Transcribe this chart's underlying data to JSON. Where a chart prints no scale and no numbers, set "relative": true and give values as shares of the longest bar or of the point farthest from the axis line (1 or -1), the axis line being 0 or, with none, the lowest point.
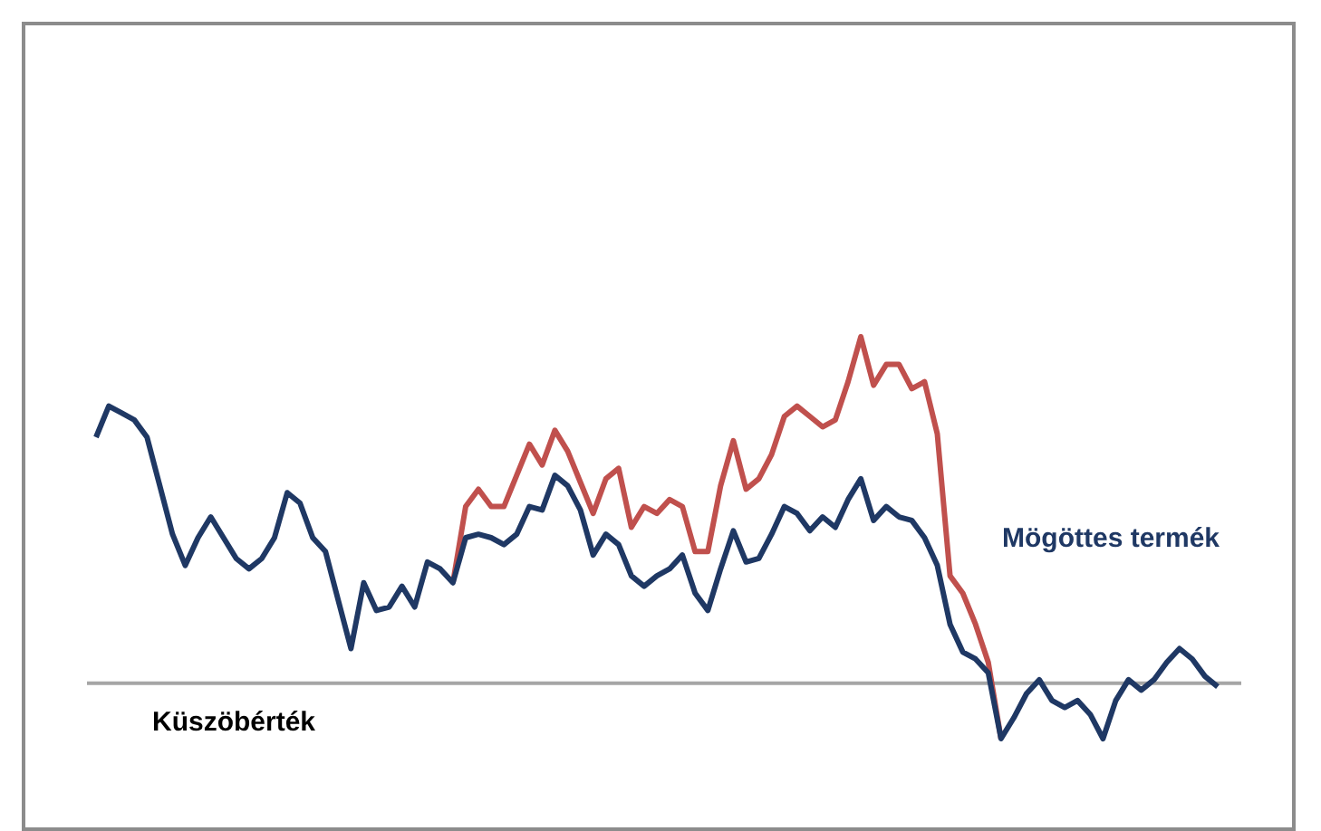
{
  "chart_data": {
    "type": "line",
    "relative": true,
    "categories": [
      null,
      null,
      null,
      null,
      null,
      null,
      null,
      null,
      null,
      null,
      null,
      null,
      null,
      null,
      null,
      null,
      null,
      null,
      null,
      null,
      null,
      null,
      null,
      null,
      null,
      null,
      null,
      null,
      null,
      null,
      null,
      null,
      null,
      null,
      null,
      null,
      null,
      null,
      null,
      null,
      null,
      null,
      null,
      null,
      null,
      null,
      null,
      null,
      null,
      null,
      null,
      null,
      null,
      null,
      null,
      null,
      null,
      null,
      null,
      null,
      null,
      null,
      null,
      null,
      null,
      null,
      null,
      null,
      null,
      null,
      null,
      null,
      null,
      null,
      null,
      null,
      null,
      null,
      null,
      null,
      null,
      null,
      null,
      null,
      null,
      null,
      null,
      null,
      null
    ],
    "series": [
      {
        "color": "#c0504d",
        "values": [
          null,
          null,
          null,
          null,
          null,
          null,
          null,
          null,
          null,
          null,
          null,
          null,
          null,
          null,
          null,
          null,
          null,
          null,
          null,
          null,
          null,
          null,
          null,
          null,
          null,
          null,
          null,
          null,
          0.29,
          0.51,
          0.56,
          0.51,
          0.51,
          0.6,
          0.69,
          0.63,
          0.73,
          0.67,
          0.58,
          0.49,
          0.59,
          0.62,
          0.45,
          0.51,
          0.49,
          0.53,
          0.51,
          0.38,
          0.38,
          0.57,
          0.7,
          0.56,
          0.59,
          0.66,
          0.77,
          0.8,
          0.77,
          0.74,
          0.76,
          0.87,
          1,
          0.86,
          0.92,
          0.92,
          0.85,
          0.87,
          0.72,
          0.31,
          0.26,
          0.17,
          0.06,
          -0.16,
          null,
          null,
          null,
          null,
          null,
          null,
          null,
          null,
          null,
          null,
          null,
          null,
          null,
          null,
          null,
          null,
          null
        ]
      },
      {
        "name": "Mögöttes termék",
        "color": "#1f3864",
        "values": [
          0.71,
          0.8,
          0.78,
          0.76,
          0.71,
          0.57,
          0.43,
          0.34,
          0.42,
          0.48,
          0.42,
          0.36,
          0.33,
          0.36,
          0.42,
          0.55,
          0.52,
          0.42,
          0.38,
          0.24,
          0.1,
          0.29,
          0.21,
          0.22,
          0.28,
          0.22,
          0.35,
          0.33,
          0.29,
          0.42,
          0.43,
          0.42,
          0.4,
          0.43,
          0.51,
          0.5,
          0.6,
          0.57,
          0.5,
          0.37,
          0.43,
          0.4,
          0.31,
          0.28,
          0.31,
          0.33,
          0.37,
          0.26,
          0.21,
          0.33,
          0.44,
          0.35,
          0.36,
          0.43,
          0.51,
          0.49,
          0.44,
          0.48,
          0.45,
          0.53,
          0.59,
          0.47,
          0.51,
          0.48,
          0.47,
          0.42,
          0.34,
          0.17,
          0.09,
          0.07,
          0.03,
          -0.16,
          -0.1,
          -0.03,
          0.01,
          -0.05,
          -0.07,
          -0.05,
          -0.09,
          -0.16,
          -0.05,
          0.01,
          -0.02,
          0.01,
          0.06,
          0.1,
          0.07,
          0.02,
          -0.01
        ]
      }
    ],
    "ref_lines": [
      {
        "axis": "y",
        "value": 0,
        "label": "Küszöbérték",
        "color": "#a6a6a6"
      }
    ]
  }
}
